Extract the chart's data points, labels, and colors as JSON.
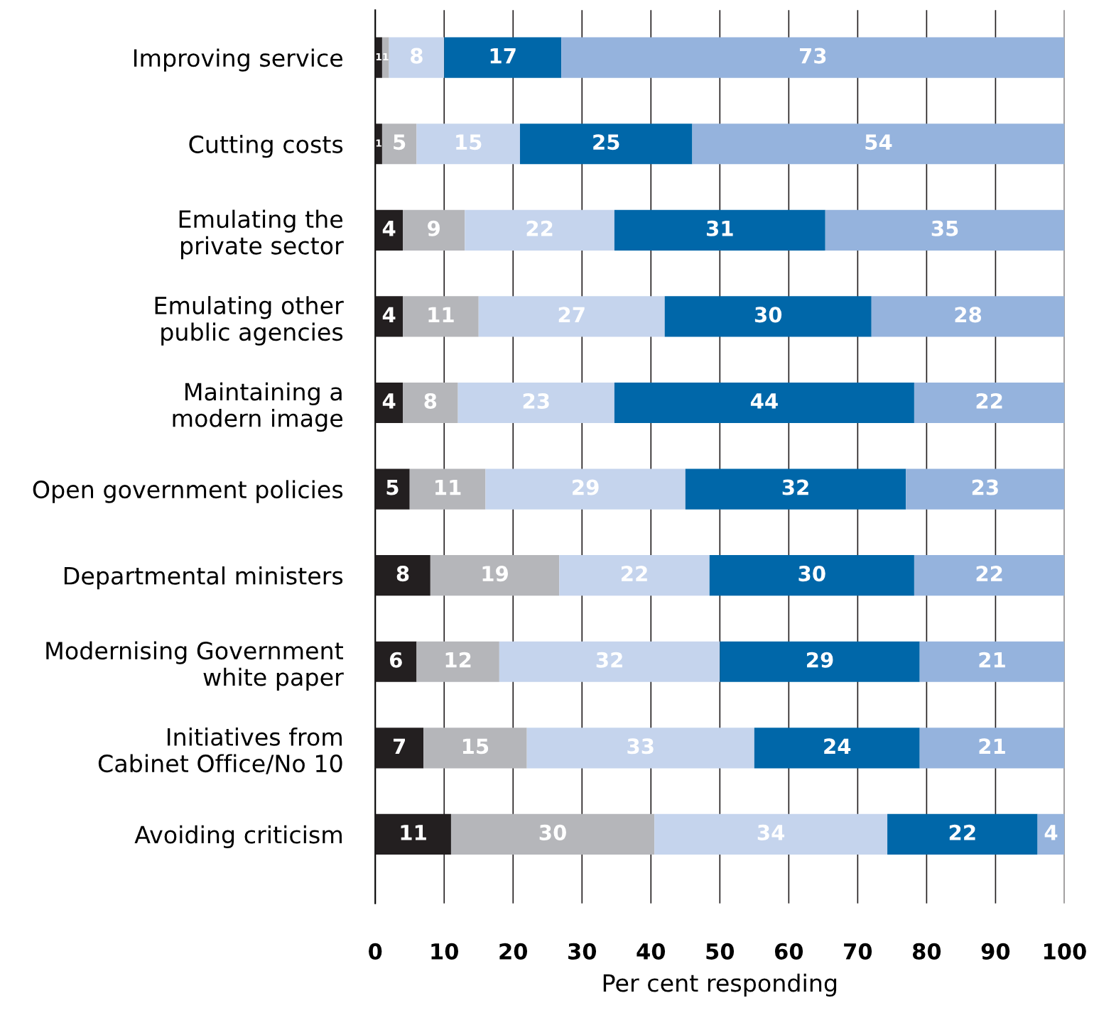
{
  "chart_data": {
    "type": "bar",
    "orientation": "horizontal",
    "stacked": true,
    "xlabel": "Per cent responding",
    "categories": [
      "Improving service",
      "Cutting costs",
      "Emulating the\nprivate sector",
      "Emulating other\npublic agencies",
      "Maintaining a\nmodern image",
      "Open government policies",
      "Departmental ministers",
      "Modernising Government\nwhite paper",
      "Initiatives from\nCabinet Office/No 10",
      "Avoiding criticism"
    ],
    "series": [
      {
        "color": "#231f20",
        "values": [
          1,
          1,
          4,
          4,
          4,
          5,
          8,
          6,
          7,
          11
        ],
        "value_labels": [
          "1",
          "1",
          "4",
          "4",
          "4",
          "5",
          "8",
          "6",
          "7",
          "11"
        ]
      },
      {
        "color": "#b5b6ba",
        "values": [
          1,
          5,
          9,
          11,
          8,
          11,
          18.7,
          12,
          15,
          29.5
        ],
        "value_labels": [
          "1",
          "5",
          "9",
          "11",
          "8",
          "11",
          "19",
          "12",
          "15",
          "30"
        ]
      },
      {
        "color": "#c5d4ed",
        "values": [
          8,
          15,
          21.7,
          27,
          22.7,
          29,
          21.8,
          32,
          33,
          33.8
        ],
        "value_labels": [
          "8",
          "15",
          "22",
          "27",
          "23",
          "29",
          "22",
          "32",
          "33",
          "34"
        ]
      },
      {
        "color": "#0067a9",
        "values": [
          17,
          25,
          30.6,
          30,
          43.5,
          32,
          29.7,
          29,
          24,
          21.8
        ],
        "value_labels": [
          "17",
          "25",
          "31",
          "30",
          "44",
          "32",
          "30",
          "29",
          "24",
          "22"
        ]
      },
      {
        "color": "#95b3dd",
        "values": [
          73,
          54,
          34.7,
          28,
          21.8,
          23,
          21.8,
          21,
          21,
          3.9
        ],
        "value_labels": [
          "73",
          "54",
          "35",
          "28",
          "22",
          "23",
          "22",
          "21",
          "21",
          "4"
        ]
      }
    ],
    "xlim": [
      0,
      100
    ],
    "xticks": [
      0,
      10,
      20,
      30,
      40,
      50,
      60,
      70,
      80,
      90,
      100
    ],
    "grid": "x",
    "legend": false
  }
}
